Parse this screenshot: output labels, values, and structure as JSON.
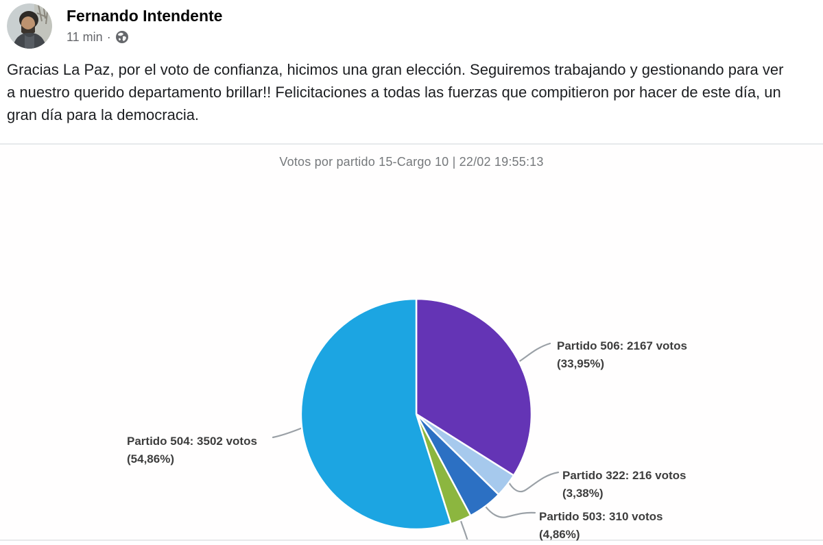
{
  "post": {
    "author": "Fernando Intendente",
    "time": "11 min",
    "meta_separator": "·",
    "audience_icon": "globe-icon",
    "body": "Gracias La Paz, por el voto de confianza, hicimos una gran elección. Seguiremos trabajando y gestionando para ver a nuestro querido departamento brillar!! Felicitaciones a todas las fuerzas que compitieron por hacer de este día, un gran día para la democracia."
  },
  "chart_data": {
    "type": "pie",
    "title": "Votos por partido 15-Cargo 10 | 22/02 19:55:13",
    "start_angle_deg": 0,
    "clockwise": true,
    "legend_position": "outside-callouts",
    "series": [
      {
        "name": "Partido 506",
        "votes": 2167,
        "pct": 33.95,
        "color": "#6434B5",
        "label": "Partido 506: 2167 votos\n(33,95%)"
      },
      {
        "name": "Partido 322",
        "votes": 216,
        "pct": 3.38,
        "color": "#A6C9ED",
        "label": "Partido 322: 216 votos\n(3,38%)"
      },
      {
        "name": "Partido 503",
        "votes": 310,
        "pct": 4.86,
        "color": "#2C70C3",
        "label": "Partido 503: 310 votos\n(4,86%)"
      },
      {
        "name": "",
        "pct": 2.95,
        "color": "#8CB63F",
        "label": ""
      },
      {
        "name": "Partido 504",
        "votes": 3502,
        "pct": 54.86,
        "color": "#1CA5E2",
        "label": "Partido 504: 3502 votos\n(54,86%)"
      }
    ]
  }
}
